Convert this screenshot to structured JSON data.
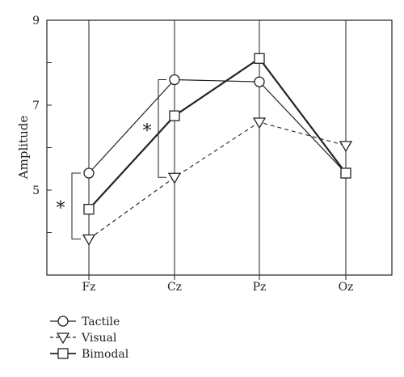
{
  "chart_data": {
    "type": "line",
    "ylabel": "Amplitude",
    "xlabel": "",
    "categories": [
      "Fz",
      "Cz",
      "Pz",
      "Oz"
    ],
    "ylim": [
      3,
      9
    ],
    "yticks": [
      "5",
      "7",
      "9"
    ],
    "grid": "vertical lines at each category",
    "legend_position": "bottom-left",
    "series": [
      {
        "name": "Tactile",
        "marker": "circle",
        "line": "solid-thin",
        "values": [
          5.4,
          7.6,
          7.55,
          5.4
        ]
      },
      {
        "name": "Visual",
        "marker": "triangle-down",
        "line": "dashed",
        "values": [
          3.85,
          5.3,
          6.6,
          6.05
        ]
      },
      {
        "name": "Bimodal",
        "marker": "square",
        "line": "solid-thick",
        "values": [
          4.55,
          6.75,
          8.1,
          5.4
        ]
      }
    ],
    "annotations": [
      {
        "text": "*",
        "category": "Fz",
        "from": 5.4,
        "to": 3.85
      },
      {
        "text": "*",
        "category": "Cz",
        "from": 7.6,
        "to": 5.3
      }
    ]
  }
}
